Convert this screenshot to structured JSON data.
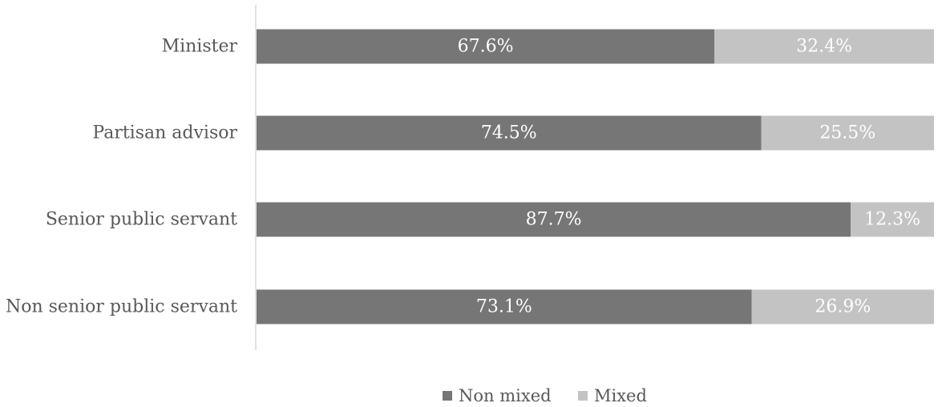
{
  "chart_data": {
    "type": "bar",
    "orientation": "horizontal",
    "stacked": true,
    "percent_stacked": true,
    "categories": [
      "Minister",
      "Partisan advisor",
      "Senior public servant",
      "Non senior public servant"
    ],
    "series": [
      {
        "name": "Non mixed",
        "color": "#767676",
        "values": [
          67.6,
          74.5,
          87.7,
          73.1
        ],
        "labels": [
          "67.6%",
          "74.5%",
          "87.7%",
          "73.1%"
        ]
      },
      {
        "name": "Mixed",
        "color": "#c3c3c3",
        "values": [
          32.4,
          25.5,
          12.3,
          26.9
        ],
        "labels": [
          "32.4%",
          "25.5%",
          "12.3%",
          "26.9%"
        ]
      }
    ],
    "xlim": [
      0,
      100
    ],
    "title": "",
    "xlabel": "",
    "ylabel": "",
    "grid": false,
    "legend_position": "bottom"
  }
}
